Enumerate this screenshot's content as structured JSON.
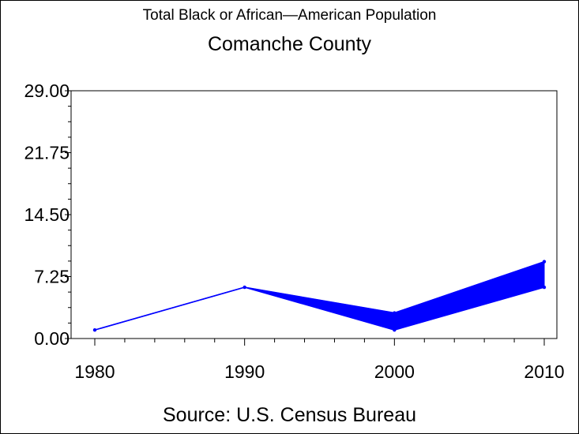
{
  "chart_data": {
    "type": "area",
    "title": "Total Black or African—American Population",
    "subtitle": "Comanche County",
    "footnote": "Source: U.S. Census Bureau",
    "xlabel": "",
    "ylabel": "",
    "x": [
      1980,
      1990,
      2000,
      2010
    ],
    "x_tick_labels": [
      "1980",
      "1990",
      "2000",
      "2010"
    ],
    "band": {
      "upper": [
        1,
        6,
        3,
        9
      ],
      "lower": [
        1,
        6,
        1,
        6
      ]
    },
    "ylim": [
      0,
      29
    ],
    "xlim": [
      1980,
      2010
    ],
    "y_ticks": [
      0,
      7.25,
      14.5,
      21.75,
      29
    ],
    "y_tick_labels": [
      "0.00",
      "7.25",
      "14.50",
      "21.75",
      "29.00"
    ],
    "grid": false,
    "legend": "none",
    "series_color": "#0000ff"
  }
}
